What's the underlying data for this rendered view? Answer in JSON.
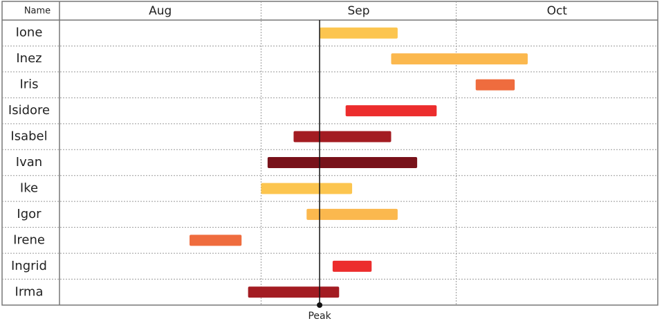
{
  "chart_data": {
    "type": "gantt",
    "header": "Name",
    "xlim": [
      0,
      92
    ],
    "xticks": [
      {
        "value": 0,
        "label": "Aug"
      },
      {
        "value": 31,
        "label": "Sep"
      },
      {
        "value": 61,
        "label": "Oct"
      }
    ],
    "annotation": {
      "value": 40,
      "label": "Peak"
    },
    "tasks": [
      {
        "name": "Ione",
        "start": 40,
        "end": 52,
        "color": "#fcc54f"
      },
      {
        "name": "Inez",
        "start": 51,
        "end": 72,
        "color": "#fbb84e"
      },
      {
        "name": "Iris",
        "start": 64,
        "end": 70,
        "color": "#ef6c3e"
      },
      {
        "name": "Isidore",
        "start": 44,
        "end": 58,
        "color": "#ec2d2d"
      },
      {
        "name": "Isabel",
        "start": 36,
        "end": 51,
        "color": "#a31c22"
      },
      {
        "name": "Ivan",
        "start": 32,
        "end": 55,
        "color": "#78121a"
      },
      {
        "name": "Ike",
        "start": 31,
        "end": 45,
        "color": "#fcc54f"
      },
      {
        "name": "Igor",
        "start": 38,
        "end": 52,
        "color": "#fbb84e"
      },
      {
        "name": "Irene",
        "start": 20,
        "end": 28,
        "color": "#ef6c3e"
      },
      {
        "name": "Ingrid",
        "start": 42,
        "end": 48,
        "color": "#ec2d2d"
      },
      {
        "name": "Irma",
        "start": 29,
        "end": 43,
        "color": "#a31c22"
      }
    ]
  }
}
